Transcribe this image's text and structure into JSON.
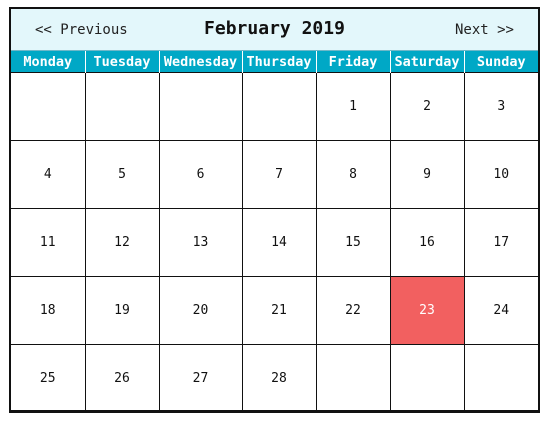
{
  "header": {
    "prev_label": "<< Previous",
    "next_label": "Next >>",
    "title": "February 2019"
  },
  "weekdays": [
    "Monday",
    "Tuesday",
    "Wednesday",
    "Thursday",
    "Friday",
    "Saturday",
    "Sunday"
  ],
  "weeks": [
    [
      "",
      "",
      "",
      "",
      "1",
      "2",
      "3"
    ],
    [
      "4",
      "5",
      "6",
      "7",
      "8",
      "9",
      "10"
    ],
    [
      "11",
      "12",
      "13",
      "14",
      "15",
      "16",
      "17"
    ],
    [
      "18",
      "19",
      "20",
      "21",
      "22",
      "23",
      "24"
    ],
    [
      "25",
      "26",
      "27",
      "28",
      "",
      "",
      ""
    ]
  ],
  "highlighted_day": "23",
  "colors": {
    "header_bg": "#e3f7fb",
    "weekday_bg": "#00a8c6",
    "highlight": "#f26060"
  }
}
